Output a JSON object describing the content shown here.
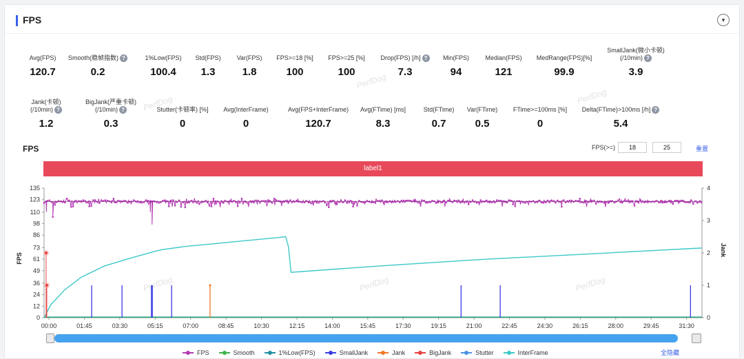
{
  "header": {
    "title": "FPS",
    "toggle_icon": "▾"
  },
  "metrics_row1": [
    {
      "label": "Avg(FPS)",
      "value": "120.7",
      "help": false
    },
    {
      "label": "Smooth(稳帧指数)",
      "value": "0.2",
      "help": true
    },
    {
      "label": "1%Low(FPS)",
      "value": "100.4",
      "help": false
    },
    {
      "label": "Std(FPS)",
      "value": "1.3",
      "help": false
    },
    {
      "label": "Var(FPS)",
      "value": "1.8",
      "help": false
    },
    {
      "label": "FPS>=18 [%]",
      "value": "100",
      "help": false
    },
    {
      "label": "FPS>=25 [%]",
      "value": "100",
      "help": false
    },
    {
      "label": "Drop(FPS) [/h]",
      "value": "7.3",
      "help": true
    },
    {
      "label": "Min(FPS)",
      "value": "94",
      "help": false
    },
    {
      "label": "Median(FPS)",
      "value": "121",
      "help": false
    },
    {
      "label": "MedRange(FPS)[%]",
      "value": "99.9",
      "help": false
    },
    {
      "label": "SmallJank(微小卡顿)",
      "label2": "(/10min)",
      "value": "3.9",
      "help": true
    }
  ],
  "metrics_row2": [
    {
      "label": "Jank(卡顿)",
      "label2": "(/10min)",
      "value": "1.2",
      "help": true
    },
    {
      "label": "BigJank(严重卡顿)",
      "label2": "(/10min)",
      "value": "0.3",
      "help": true
    },
    {
      "label": "Stutter(卡顿率) [%]",
      "value": "0",
      "help": false
    },
    {
      "label": "Avg(InterFrame)",
      "value": "0",
      "help": false
    },
    {
      "label": "Avg(FPS+InterFrame)",
      "value": "120.7",
      "help": false
    },
    {
      "label": "Avg(FTime) [ms]",
      "value": "8.3",
      "help": false
    },
    {
      "label": "Std(FTime)",
      "value": "0.7",
      "help": false
    },
    {
      "label": "Var(FTime)",
      "value": "0.5",
      "help": false
    },
    {
      "label": "FTime>=100ms [%]",
      "value": "0",
      "help": false
    },
    {
      "label": "Delta(FTime)>100ms [/h]",
      "value": "5.4",
      "help": true
    }
  ],
  "watermark": "PerfDog",
  "controls": {
    "section_title": "FPS",
    "threshold_label": "FPS(>=)",
    "threshold_1": "18",
    "threshold_2": "25",
    "reset_label": "重置"
  },
  "label_bar": "label1",
  "hide_all_label": "全隐藏",
  "colors": {
    "fps": "#b43cb4",
    "smooth": "#3cb44b",
    "low1": "#1f8fa0",
    "smalljank": "#3a3ae6",
    "jank": "#f07828",
    "bigjank": "#e84040",
    "stutter": "#4a90e2",
    "interframe": "#3cc8c8"
  },
  "chart_data": {
    "type": "line",
    "title": "FPS",
    "xlabel": "",
    "ylabel": "FPS",
    "y2label": "Jank",
    "ylim": [
      0,
      135
    ],
    "y2lim": [
      0,
      4
    ],
    "x_unit": "seconds",
    "xlim": [
      0,
      1950
    ],
    "x_ticks": [
      "00:00",
      "01:45",
      "03:30",
      "05:15",
      "07:00",
      "08:45",
      "10:30",
      "12:15",
      "14:00",
      "15:45",
      "17:30",
      "19:15",
      "21:00",
      "22:45",
      "24:30",
      "26:15",
      "28:00",
      "29:45",
      "31:30"
    ],
    "y_ticks": [
      0,
      12,
      24,
      36,
      49,
      61,
      73,
      86,
      98,
      110,
      123,
      135
    ],
    "y2_ticks": [
      0,
      1,
      2,
      3,
      4
    ],
    "legend_position": "bottom",
    "grid": true,
    "series": [
      {
        "name": "FPS",
        "axis": "left",
        "approx_level": 121,
        "min": 94,
        "max": 125,
        "dips_to": [
          [
            7,
            110
          ],
          [
            26,
            105
          ],
          [
            315,
            110
          ],
          [
            320,
            97
          ]
        ]
      },
      {
        "name": "Smooth",
        "axis": "left",
        "approx_level": 0.2
      },
      {
        "name": "1%Low(FPS)",
        "axis": "left",
        "approx_level": 0
      },
      {
        "name": "SmallJank",
        "axis": "right",
        "events_x": [
          141,
          231,
          321,
          318,
          378,
          1236,
          1352,
          1916
        ],
        "height": 1
      },
      {
        "name": "Jank",
        "axis": "right",
        "events_x": [
          492
        ],
        "height": 1
      },
      {
        "name": "BigJank",
        "axis": "right",
        "events_x": [
          6,
          8
        ],
        "points": [
          [
            6,
            2.0
          ],
          [
            8,
            1.0
          ]
        ]
      },
      {
        "name": "Stutter",
        "axis": "right",
        "events_x": [],
        "height": 0
      },
      {
        "name": "InterFrame",
        "axis": "right",
        "points": [
          [
            0,
            0
          ],
          [
            20,
            0.4
          ],
          [
            60,
            0.85
          ],
          [
            110,
            1.25
          ],
          [
            180,
            1.6
          ],
          [
            260,
            1.85
          ],
          [
            330,
            2.05
          ],
          [
            350,
            2.1
          ],
          [
            420,
            2.2
          ],
          [
            520,
            2.3
          ],
          [
            620,
            2.4
          ],
          [
            700,
            2.48
          ],
          [
            716,
            2.5
          ],
          [
            724,
            2.2
          ],
          [
            732,
            1.4
          ],
          [
            1000,
            1.6
          ],
          [
            1300,
            1.8
          ],
          [
            1600,
            1.96
          ],
          [
            1950,
            2.15
          ]
        ]
      }
    ]
  }
}
